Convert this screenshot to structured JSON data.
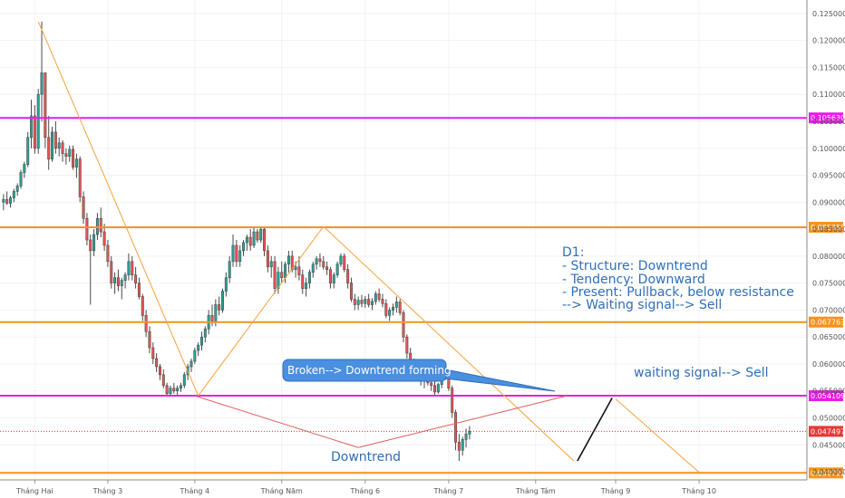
{
  "chart_data": {
    "type": "candlestick",
    "y_axis": {
      "range": [
        0.0385,
        0.1275
      ],
      "ticks": [
        0.125,
        0.12,
        0.115,
        0.11,
        0.105,
        0.1,
        0.095,
        0.09,
        0.085,
        0.08,
        0.075,
        0.07,
        0.065,
        0.06,
        0.055,
        0.05,
        0.045,
        0.04
      ],
      "tick_labels": [
        "0.125000",
        "0.120000",
        "0.115000",
        "0.110000",
        "0.105000",
        "0.100000",
        "0.095000",
        "0.090000",
        "0.085000",
        "0.080000",
        "0.075000",
        "0.070000",
        "0.065000",
        "0.060000",
        "0.055000",
        "0.050000",
        "0.045000",
        "0.040000"
      ]
    },
    "x_axis": {
      "range": [
        0,
        232
      ],
      "ticks": [
        {
          "label": "Tháng Hai",
          "t": 10
        },
        {
          "label": "Tháng 3",
          "t": 31
        },
        {
          "label": "Tháng 4",
          "t": 56
        },
        {
          "label": "Tháng Năm",
          "t": 81
        },
        {
          "label": "Tháng 6",
          "t": 105
        },
        {
          "label": "Tháng 7",
          "t": 129
        },
        {
          "label": "Tháng Tám",
          "t": 154
        },
        {
          "label": "Tháng 9",
          "t": 177
        },
        {
          "label": "Tháng 10",
          "t": 201
        }
      ]
    },
    "levels": [
      {
        "value": 0.10563,
        "label": "0.105630",
        "color": "#e81ce8"
      },
      {
        "value": 0.085359,
        "label": "0.085359",
        "color": "#f7931a"
      },
      {
        "value": 0.067763,
        "label": "0.067763",
        "color": "#f7931a"
      },
      {
        "value": 0.054109,
        "label": "0.054109",
        "color": "#e81ce8"
      },
      {
        "value": 0.039791,
        "label": "0.039791",
        "color": "#f7931a"
      }
    ],
    "current_price": {
      "value": 0.047497,
      "label": "0.047497",
      "color": "#e53935"
    },
    "candles": [
      [
        0.09,
        0.0915,
        0.0885,
        0.0905
      ],
      [
        0.0905,
        0.092,
        0.0895,
        0.0898
      ],
      [
        0.0898,
        0.0912,
        0.089,
        0.0908
      ],
      [
        0.0908,
        0.0925,
        0.09,
        0.092
      ],
      [
        0.092,
        0.0935,
        0.0912,
        0.093
      ],
      [
        0.093,
        0.096,
        0.0925,
        0.0955
      ],
      [
        0.0955,
        0.0975,
        0.0945,
        0.097
      ],
      [
        0.097,
        0.103,
        0.0965,
        0.102
      ],
      [
        0.102,
        0.109,
        0.1,
        0.106
      ],
      [
        0.106,
        0.108,
        0.099,
        0.1
      ],
      [
        0.1,
        0.111,
        0.099,
        0.11
      ],
      [
        0.11,
        0.1235,
        0.105,
        0.114
      ],
      [
        0.114,
        0.114,
        0.1,
        0.102
      ],
      [
        0.102,
        0.106,
        0.096,
        0.098
      ],
      [
        0.098,
        0.104,
        0.0975,
        0.103
      ],
      [
        0.103,
        0.105,
        0.099,
        0.1
      ],
      [
        0.1,
        0.102,
        0.0985,
        0.101
      ],
      [
        0.101,
        0.1015,
        0.0975,
        0.099
      ],
      [
        0.099,
        0.1,
        0.097,
        0.0985
      ],
      [
        0.0985,
        0.1005,
        0.0975,
        0.0998
      ],
      [
        0.0998,
        0.1005,
        0.096,
        0.0965
      ],
      [
        0.0965,
        0.099,
        0.0945,
        0.098
      ],
      [
        0.098,
        0.0985,
        0.09,
        0.091
      ],
      [
        0.091,
        0.092,
        0.086,
        0.087
      ],
      [
        0.087,
        0.088,
        0.082,
        0.083
      ],
      [
        0.083,
        0.084,
        0.071,
        0.081
      ],
      [
        0.081,
        0.085,
        0.08,
        0.084
      ],
      [
        0.084,
        0.088,
        0.083,
        0.087
      ],
      [
        0.087,
        0.089,
        0.0835,
        0.0845
      ],
      [
        0.0845,
        0.086,
        0.081,
        0.082
      ],
      [
        0.082,
        0.083,
        0.078,
        0.079
      ],
      [
        0.079,
        0.08,
        0.074,
        0.075
      ],
      [
        0.075,
        0.077,
        0.073,
        0.076
      ],
      [
        0.076,
        0.0775,
        0.0735,
        0.0745
      ],
      [
        0.0745,
        0.076,
        0.072,
        0.0755
      ],
      [
        0.0755,
        0.077,
        0.074,
        0.0765
      ],
      [
        0.0765,
        0.0805,
        0.0755,
        0.079
      ],
      [
        0.079,
        0.08,
        0.0755,
        0.0765
      ],
      [
        0.0765,
        0.078,
        0.074,
        0.075
      ],
      [
        0.075,
        0.076,
        0.072,
        0.0725
      ],
      [
        0.0725,
        0.073,
        0.068,
        0.069
      ],
      [
        0.069,
        0.07,
        0.065,
        0.066
      ],
      [
        0.066,
        0.067,
        0.062,
        0.063
      ],
      [
        0.063,
        0.064,
        0.06,
        0.061
      ],
      [
        0.061,
        0.062,
        0.0585,
        0.0595
      ],
      [
        0.0595,
        0.06,
        0.057,
        0.058
      ],
      [
        0.058,
        0.059,
        0.0555,
        0.056
      ],
      [
        0.056,
        0.0565,
        0.054,
        0.0545
      ],
      [
        0.0545,
        0.056,
        0.0541,
        0.0555
      ],
      [
        0.0555,
        0.0565,
        0.0545,
        0.055
      ],
      [
        0.055,
        0.056,
        0.0542,
        0.0555
      ],
      [
        0.0555,
        0.0565,
        0.0548,
        0.056
      ],
      [
        0.056,
        0.0585,
        0.0555,
        0.058
      ],
      [
        0.058,
        0.06,
        0.057,
        0.0595
      ],
      [
        0.0595,
        0.061,
        0.0585,
        0.0605
      ],
      [
        0.0605,
        0.063,
        0.06,
        0.0625
      ],
      [
        0.0625,
        0.064,
        0.0615,
        0.0635
      ],
      [
        0.0635,
        0.066,
        0.0625,
        0.065
      ],
      [
        0.065,
        0.067,
        0.064,
        0.0665
      ],
      [
        0.0665,
        0.07,
        0.0655,
        0.069
      ],
      [
        0.069,
        0.071,
        0.067,
        0.068
      ],
      [
        0.068,
        0.072,
        0.067,
        0.071
      ],
      [
        0.071,
        0.0725,
        0.069,
        0.07
      ],
      [
        0.07,
        0.074,
        0.0695,
        0.0735
      ],
      [
        0.0735,
        0.077,
        0.0725,
        0.076
      ],
      [
        0.076,
        0.08,
        0.075,
        0.079
      ],
      [
        0.079,
        0.084,
        0.078,
        0.082
      ],
      [
        0.082,
        0.083,
        0.078,
        0.079
      ],
      [
        0.079,
        0.082,
        0.078,
        0.081
      ],
      [
        0.081,
        0.083,
        0.08,
        0.0825
      ],
      [
        0.0825,
        0.084,
        0.081,
        0.0835
      ],
      [
        0.0835,
        0.085,
        0.081,
        0.082
      ],
      [
        0.082,
        0.0855,
        0.0815,
        0.0845
      ],
      [
        0.0845,
        0.085,
        0.0825,
        0.083
      ],
      [
        0.083,
        0.0855,
        0.0825,
        0.085
      ],
      [
        0.085,
        0.0855,
        0.08,
        0.081
      ],
      [
        0.081,
        0.082,
        0.077,
        0.078
      ],
      [
        0.078,
        0.08,
        0.076,
        0.079
      ],
      [
        0.079,
        0.08,
        0.073,
        0.074
      ],
      [
        0.074,
        0.078,
        0.073,
        0.077
      ],
      [
        0.077,
        0.079,
        0.075,
        0.076
      ],
      [
        0.076,
        0.079,
        0.075,
        0.0785
      ],
      [
        0.0785,
        0.081,
        0.077,
        0.08
      ],
      [
        0.08,
        0.081,
        0.077,
        0.0775
      ],
      [
        0.0775,
        0.079,
        0.076,
        0.078
      ],
      [
        0.078,
        0.08,
        0.0755,
        0.0765
      ],
      [
        0.0765,
        0.0775,
        0.073,
        0.074
      ],
      [
        0.074,
        0.076,
        0.0725,
        0.075
      ],
      [
        0.075,
        0.0775,
        0.074,
        0.077
      ],
      [
        0.077,
        0.079,
        0.076,
        0.0785
      ],
      [
        0.0785,
        0.08,
        0.0775,
        0.0795
      ],
      [
        0.0795,
        0.0805,
        0.078,
        0.079
      ],
      [
        0.079,
        0.08,
        0.0775,
        0.078
      ],
      [
        0.078,
        0.079,
        0.0765,
        0.0775
      ],
      [
        0.0775,
        0.078,
        0.074,
        0.075
      ],
      [
        0.075,
        0.077,
        0.074,
        0.0765
      ],
      [
        0.0765,
        0.079,
        0.076,
        0.0785
      ],
      [
        0.0785,
        0.0805,
        0.078,
        0.08
      ],
      [
        0.08,
        0.0805,
        0.077,
        0.0775
      ],
      [
        0.0775,
        0.0785,
        0.074,
        0.075
      ],
      [
        0.075,
        0.076,
        0.0715,
        0.072
      ],
      [
        0.072,
        0.073,
        0.07,
        0.071
      ],
      [
        0.071,
        0.0725,
        0.07,
        0.0718
      ],
      [
        0.0718,
        0.0728,
        0.0705,
        0.0712
      ],
      [
        0.0712,
        0.0726,
        0.0704,
        0.072
      ],
      [
        0.072,
        0.073,
        0.0705,
        0.071
      ],
      [
        0.071,
        0.0722,
        0.07,
        0.0716
      ],
      [
        0.0716,
        0.0735,
        0.071,
        0.073
      ],
      [
        0.073,
        0.074,
        0.0715,
        0.072
      ],
      [
        0.072,
        0.073,
        0.0705,
        0.0712
      ],
      [
        0.0712,
        0.072,
        0.0685,
        0.069
      ],
      [
        0.069,
        0.0705,
        0.068,
        0.07
      ],
      [
        0.07,
        0.0712,
        0.069,
        0.0705
      ],
      [
        0.0705,
        0.0725,
        0.0695,
        0.0715
      ],
      [
        0.0715,
        0.072,
        0.069,
        0.0695
      ],
      [
        0.0695,
        0.07,
        0.064,
        0.065
      ],
      [
        0.065,
        0.0655,
        0.061,
        0.062
      ],
      [
        0.062,
        0.063,
        0.0595,
        0.06
      ],
      [
        0.06,
        0.061,
        0.058,
        0.059
      ],
      [
        0.059,
        0.06,
        0.057,
        0.0575
      ],
      [
        0.0575,
        0.0585,
        0.056,
        0.057
      ],
      [
        0.057,
        0.058,
        0.0555,
        0.0575
      ],
      [
        0.0575,
        0.0582,
        0.056,
        0.0565
      ],
      [
        0.0565,
        0.0572,
        0.055,
        0.056
      ],
      [
        0.056,
        0.0568,
        0.0541,
        0.0548
      ],
      [
        0.0548,
        0.0565,
        0.0545,
        0.0562
      ],
      [
        0.0562,
        0.0585,
        0.0555,
        0.058
      ],
      [
        0.058,
        0.059,
        0.057,
        0.0575
      ],
      [
        0.0575,
        0.058,
        0.055,
        0.0555
      ],
      [
        0.0555,
        0.056,
        0.05,
        0.051
      ],
      [
        0.051,
        0.0515,
        0.044,
        0.0455
      ],
      [
        0.0455,
        0.047,
        0.042,
        0.044
      ],
      [
        0.044,
        0.0465,
        0.043,
        0.046
      ],
      [
        0.046,
        0.048,
        0.0445,
        0.047
      ],
      [
        0.047,
        0.0485,
        0.046,
        0.0475
      ]
    ],
    "trend_lines": [
      {
        "name": "orange-diag-1",
        "color": "#f7a23c",
        "points": [
          [
            11,
            0.1235
          ],
          [
            57,
            0.0541
          ]
        ]
      },
      {
        "name": "orange-diag-2",
        "color": "#f7a23c",
        "points": [
          [
            57,
            0.0541
          ],
          [
            93,
            0.0855
          ]
        ]
      },
      {
        "name": "orange-diag-3",
        "color": "#f7a23c",
        "points": [
          [
            93,
            0.0855
          ],
          [
            165,
            0.042
          ]
        ]
      },
      {
        "name": "orange-projection",
        "color": "#f7a23c",
        "points": [
          [
            177,
            0.0535
          ],
          [
            201,
            0.0399
          ]
        ]
      },
      {
        "name": "red-downtrend-left",
        "color": "#e05c5c",
        "points": [
          [
            56,
            0.0541
          ],
          [
            103,
            0.0445
          ]
        ]
      },
      {
        "name": "red-downtrend-right",
        "color": "#e05c5c",
        "points": [
          [
            103,
            0.0445
          ],
          [
            163,
            0.0541
          ]
        ]
      },
      {
        "name": "black-pullback",
        "color": "#111111",
        "points": [
          [
            166,
            0.042
          ],
          [
            176,
            0.0537
          ]
        ]
      }
    ],
    "annotations": {
      "d1_lines": [
        "D1:",
        "- Structure: Downtrend",
        "- Tendency: Downward",
        "- Present: Pullback, below resistance",
        "--> Waiting signal--> Sell"
      ],
      "waiting_signal": "waiting signal--> Sell",
      "downtrend_label": "Downtrend",
      "broken_callout": "Broken--> Downtrend forming"
    },
    "colors": {
      "up": "#26a69a",
      "down": "#ef5350",
      "candle_outline": "#4a4a4a",
      "grid": "#f2f2f2",
      "note": "#2f6fb8",
      "callout_fill": "#4a8fe0"
    }
  }
}
